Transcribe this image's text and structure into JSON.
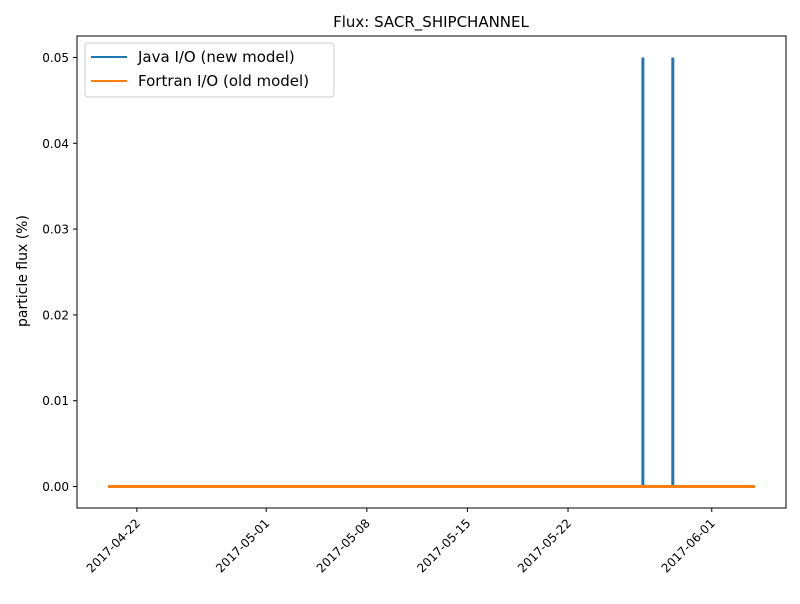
{
  "chart_data": {
    "type": "line",
    "title": "Flux: SACR_SHIPCHANNEL",
    "xlabel": "",
    "ylabel": "particle flux (%)",
    "xlim": [
      "2017-04-17T20:00",
      "2017-06-06T04:00"
    ],
    "ylim": [
      -0.0025,
      0.0525
    ],
    "x_ticks": [
      "2017-04-22",
      "2017-05-01",
      "2017-05-08",
      "2017-05-15",
      "2017-05-22",
      "2017-06-01"
    ],
    "y_ticks": [
      0.0,
      0.01,
      0.02,
      0.03,
      0.04,
      0.05
    ],
    "y_tick_labels": [
      "0.00",
      "0.01",
      "0.02",
      "0.03",
      "0.04",
      "0.05"
    ],
    "grid": false,
    "legend_position": "upper-left",
    "series": [
      {
        "name": "Java I/O (new model)",
        "color": "#1f77b4",
        "points": [
          {
            "x": "2017-04-20T00:00",
            "y": 0.0
          },
          {
            "x": "2017-05-27T05:00",
            "y": 0.0
          },
          {
            "x": "2017-05-27T05:00",
            "y": 0.05
          },
          {
            "x": "2017-05-27T05:00",
            "y": 0.0
          },
          {
            "x": "2017-05-29T07:00",
            "y": 0.0
          },
          {
            "x": "2017-05-29T07:00",
            "y": 0.05
          },
          {
            "x": "2017-05-29T07:00",
            "y": 0.0
          },
          {
            "x": "2017-06-04T00:00",
            "y": 0.0
          }
        ]
      },
      {
        "name": "Fortran I/O (old model)",
        "color": "#ff7f0e",
        "points": [
          {
            "x": "2017-04-20T00:00",
            "y": 0.0
          },
          {
            "x": "2017-06-04T00:00",
            "y": 0.0
          }
        ]
      }
    ]
  }
}
